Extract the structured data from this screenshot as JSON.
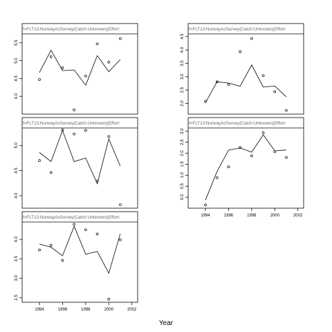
{
  "chart_data": {
    "type": "scatter",
    "xlabel": "Year",
    "x_ticks": [
      1994,
      1996,
      1998,
      2000,
      2002
    ],
    "panels": [
      {
        "strip": "f=FLT13:NorwayAcSurvey(Catch:Unknown)(Effort:",
        "xlim": [
          1992.5,
          2002.5
        ],
        "ylim": [
          3.5,
          5.75
        ],
        "y_ticks": [
          4.0,
          4.5,
          5.0,
          5.5
        ],
        "observed": {
          "x": [
            1994,
            1995,
            1996,
            1997,
            1998,
            1999,
            2000,
            2001
          ],
          "y": [
            4.47,
            5.11,
            4.8,
            3.62,
            4.57,
            5.47,
            4.96,
            5.62
          ]
        },
        "fitted": {
          "x": [
            1994,
            1995,
            1996,
            1997,
            1998,
            1999,
            2000,
            2001
          ],
          "y": [
            4.67,
            5.29,
            4.72,
            4.74,
            4.31,
            5.14,
            4.69,
            5.03
          ]
        }
      },
      {
        "strip": "f=FLT13:NorwayAcSurvey(Catch:Unknown)(Effort:",
        "xlim": [
          1992.5,
          2002.5
        ],
        "ylim": [
          1.6,
          4.6
        ],
        "y_ticks": [
          2.0,
          2.5,
          3.0,
          3.5,
          4.0,
          4.5
        ],
        "observed": {
          "x": [
            1994,
            1995,
            1996,
            1997,
            1998,
            1999,
            2000,
            2001
          ],
          "y": [
            2.08,
            2.81,
            2.71,
            3.93,
            4.43,
            3.04,
            2.44,
            1.74
          ]
        },
        "fitted": {
          "x": [
            1994,
            1995,
            1996,
            1997,
            1998,
            1999,
            2000,
            2001
          ],
          "y": [
            2.03,
            2.81,
            2.76,
            2.64,
            3.44,
            2.61,
            2.65,
            2.25
          ]
        }
      },
      {
        "strip": "f=FLT13:NorwayAcSurvey(Catch:Unknown)(Effort:",
        "xlim": [
          1992.5,
          2002.5
        ],
        "ylim": [
          3.75,
          5.35
        ],
        "y_ticks": [
          4.0,
          4.5,
          5.0
        ],
        "observed": {
          "x": [
            1994,
            1995,
            1996,
            1997,
            1998,
            1999,
            2000,
            2001
          ],
          "y": [
            4.7,
            4.46,
            5.31,
            5.23,
            5.3,
            4.29,
            5.18,
            3.82
          ]
        },
        "fitted": {
          "x": [
            1994,
            1995,
            1996,
            1997,
            1998,
            1999,
            2000,
            2001
          ],
          "y": [
            4.86,
            4.68,
            5.3,
            4.68,
            4.75,
            4.24,
            5.13,
            4.59
          ]
        }
      },
      {
        "strip": "f=FLT13:NorwayAcSurvey(Catch:Unknown)(Effort:",
        "xlim": [
          1992.5,
          2002.5
        ],
        "ylim": [
          -0.5,
          3.15
        ],
        "y_ticks": [
          0.0,
          0.5,
          1.0,
          1.5,
          2.0,
          2.5,
          3.0
        ],
        "observed": {
          "x": [
            1994,
            1995,
            1996,
            1997,
            1998,
            1999,
            2000,
            2001
          ],
          "y": [
            -0.35,
            0.89,
            1.38,
            2.26,
            1.88,
            2.93,
            2.07,
            1.81
          ]
        },
        "fitted": {
          "x": [
            1994,
            1995,
            1996,
            1997,
            1998,
            1999,
            2000,
            2001
          ],
          "y": [
            -0.13,
            1.17,
            2.14,
            2.24,
            2.05,
            2.84,
            2.11,
            2.15
          ]
        }
      },
      {
        "strip": "f=FLT13:NorwayAcSurvey(Catch:Unknown)(Effort:",
        "xlim": [
          1992.5,
          2002.5
        ],
        "ylim": [
          2.38,
          4.45
        ],
        "y_ticks": [
          2.5,
          3.0,
          3.5,
          4.0
        ],
        "observed": {
          "x": [
            1994,
            1995,
            1996,
            1997,
            1998,
            1999,
            2000,
            2001
          ],
          "y": [
            3.73,
            3.85,
            3.46,
            4.39,
            4.25,
            4.14,
            2.46,
            3.99
          ]
        },
        "fitted": {
          "x": [
            1994,
            1995,
            1996,
            1997,
            1998,
            1999,
            2000,
            2001
          ],
          "y": [
            3.88,
            3.8,
            3.58,
            4.34,
            3.62,
            3.69,
            3.13,
            4.15
          ]
        }
      }
    ]
  }
}
